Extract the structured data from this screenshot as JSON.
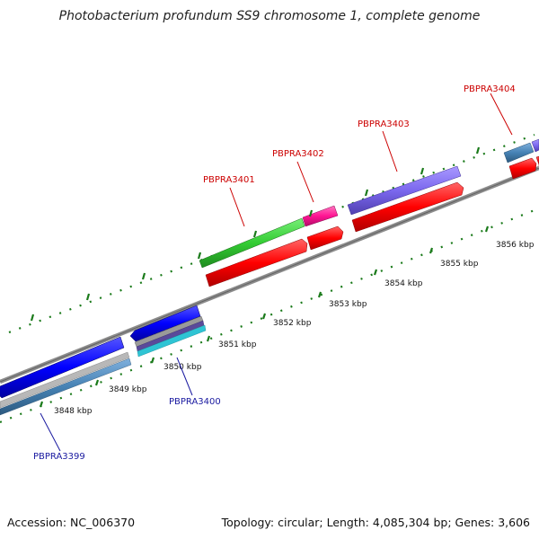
{
  "title": "Photobacterium profundum SS9 chromosome 1, complete genome",
  "footer": {
    "accession": "Accession: NC_006370",
    "summary": "Topology: circular; Length: 4,085,304 bp; Genes: 3,606"
  },
  "ticks": [
    "3848 kbp",
    "3849 kbp",
    "3850 kbp",
    "3851 kbp",
    "3852 kbp",
    "3853 kbp",
    "3854 kbp",
    "3855 kbp",
    "3856 kbp"
  ],
  "genes": [
    {
      "label": "PBPRA3399",
      "color": "#00008b",
      "strand": "minus"
    },
    {
      "label": "PBPRA3400",
      "color": "#00008b",
      "strand": "minus"
    },
    {
      "label": "PBPRA3401",
      "color": "#cc0000",
      "strand": "plus"
    },
    {
      "label": "PBPRA3402",
      "color": "#cc0000",
      "strand": "plus"
    },
    {
      "label": "PBPRA3403",
      "color": "#cc0000",
      "strand": "plus"
    },
    {
      "label": "PBPRA3404",
      "color": "#cc0000",
      "strand": "plus"
    }
  ],
  "colors": {
    "backbone": "#808080",
    "cds_forward": "#ff0000",
    "cds_reverse": "#0000ff",
    "green_feature": "#33cc33",
    "magenta_feature": "#ff1493",
    "purple_feature": "#7b68ee",
    "steelblue_feature": "#4682b4",
    "cyan_feature": "#00bcd4",
    "tick": "#006400"
  }
}
